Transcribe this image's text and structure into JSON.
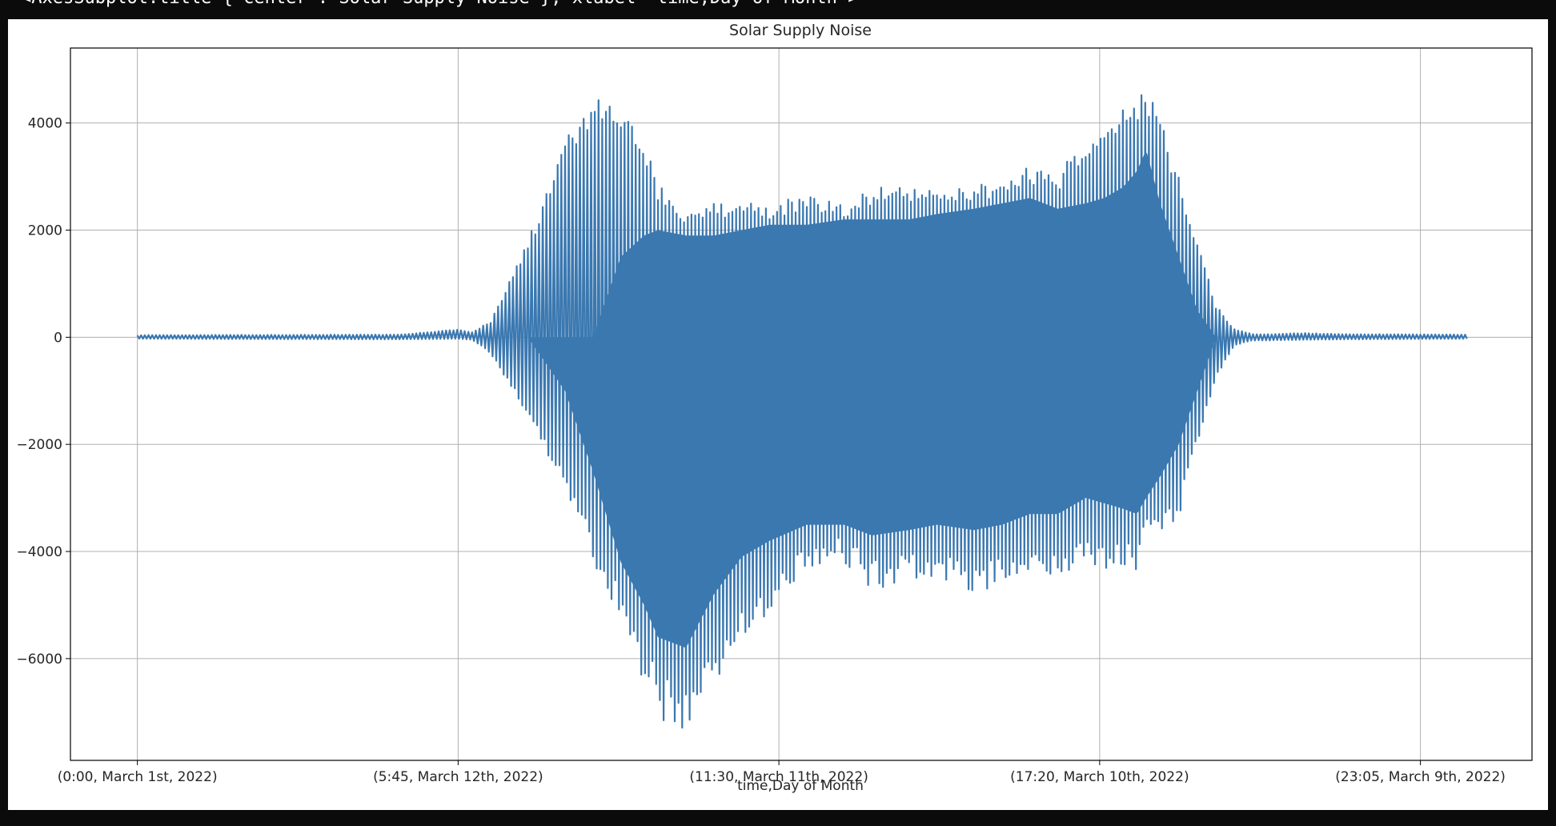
{
  "cell_output": {
    "repr_text": "<AxesSubplot:title={'center':'Solar Supply Noise'}, xlabel='time,Day of Month'>"
  },
  "colors": {
    "series": "#3b78b0",
    "grid": "#b0b0b0",
    "axes": "#000000",
    "background": "#ffffff",
    "page": "#0b0b0b"
  },
  "chart_data": {
    "type": "line",
    "title": "Solar Supply Noise",
    "xlabel": "time,Day of Month",
    "ylabel": "",
    "grid": true,
    "legend": "none",
    "x_tick_labels": [
      "(0:00, March 1st, 2022)",
      "(5:45, March 12th, 2022)",
      "(11:30, March 11th, 2022)",
      "(17:20, March 10th, 2022)",
      "(23:05, March 9th, 2022)"
    ],
    "x_tick_index": [
      0,
      345,
      690,
      1035,
      1380
    ],
    "x_range_index": [
      -72,
      1500
    ],
    "x_last_index": 1430,
    "ylim": [
      -7900,
      5400
    ],
    "y_ticks": [
      -6000,
      -4000,
      -2000,
      0,
      2000,
      4000
    ],
    "y_tick_labels": [
      "−6000",
      "−4000",
      "−2000",
      "0",
      "2000",
      "4000"
    ],
    "series": [
      {
        "envelope_index": [
          0,
          280,
          345,
          360,
          380,
          420,
          460,
          490,
          520,
          545,
          560,
          590,
          620,
          650,
          680,
          720,
          760,
          790,
          830,
          860,
          900,
          930,
          960,
          990,
          1020,
          1040,
          1060,
          1075,
          1085,
          1100,
          1120,
          1140,
          1160,
          1180,
          1200,
          1220,
          1250,
          1300,
          1430
        ],
        "max": [
          40,
          50,
          150,
          100,
          300,
          1800,
          3700,
          4500,
          4200,
          3700,
          2900,
          2300,
          2500,
          2600,
          2500,
          2700,
          2500,
          2800,
          2800,
          2800,
          2800,
          3000,
          3200,
          3100,
          3700,
          4000,
          4300,
          4600,
          4700,
          4200,
          3000,
          1800,
          600,
          150,
          60,
          60,
          80,
          60,
          50
        ],
        "min": [
          -30,
          -40,
          -30,
          -50,
          -300,
          -1500,
          -2800,
          -4200,
          -5300,
          -6500,
          -7100,
          -7400,
          -6500,
          -5600,
          -5200,
          -4300,
          -4200,
          -4700,
          -4600,
          -4500,
          -4800,
          -4600,
          -4400,
          -4500,
          -4200,
          -4400,
          -4300,
          -4400,
          -3800,
          -3700,
          -3400,
          -2000,
          -800,
          -150,
          -60,
          -60,
          -50,
          -40,
          -30
        ],
        "inner_max": [
          0,
          0,
          0,
          0,
          0,
          0,
          0,
          0,
          1500,
          1900,
          2000,
          1900,
          1900,
          2000,
          2100,
          2100,
          2200,
          2200,
          2200,
          2300,
          2400,
          2500,
          2600,
          2400,
          2500,
          2600,
          2800,
          3100,
          3500,
          2500,
          1500,
          500,
          0,
          0,
          0,
          0,
          0,
          0,
          0
        ],
        "inner_min": [
          0,
          0,
          0,
          0,
          0,
          0,
          -1000,
          -2500,
          -4200,
          -5000,
          -5600,
          -5800,
          -4800,
          -4100,
          -3800,
          -3500,
          -3500,
          -3700,
          -3600,
          -3500,
          -3600,
          -3500,
          -3300,
          -3300,
          -3000,
          -3100,
          -3200,
          -3300,
          -3000,
          -2600,
          -2000,
          -1000,
          0,
          0,
          0,
          0,
          0,
          0,
          0
        ]
      }
    ]
  }
}
